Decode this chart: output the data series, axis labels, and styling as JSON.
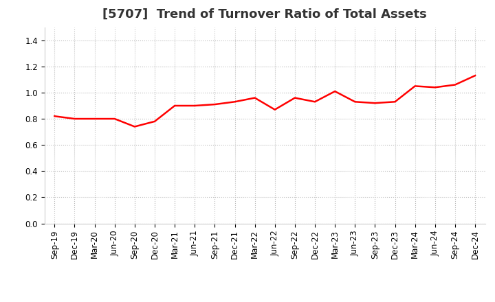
{
  "title": "[5707]  Trend of Turnover Ratio of Total Assets",
  "x_labels": [
    "Sep-19",
    "Dec-19",
    "Mar-20",
    "Jun-20",
    "Sep-20",
    "Dec-20",
    "Mar-21",
    "Jun-21",
    "Sep-21",
    "Dec-21",
    "Mar-22",
    "Jun-22",
    "Sep-22",
    "Dec-22",
    "Mar-23",
    "Jun-23",
    "Sep-23",
    "Dec-23",
    "Mar-24",
    "Jun-24",
    "Sep-24",
    "Dec-24"
  ],
  "y_values": [
    0.82,
    0.8,
    0.8,
    0.8,
    0.74,
    0.78,
    0.9,
    0.9,
    0.91,
    0.93,
    0.96,
    0.87,
    0.96,
    0.93,
    1.01,
    0.93,
    0.92,
    0.93,
    1.05,
    1.04,
    1.06,
    1.13
  ],
  "line_color": "#FF0000",
  "line_width": 1.8,
  "ylim": [
    0.0,
    1.5
  ],
  "yticks": [
    0.0,
    0.2,
    0.4,
    0.6,
    0.8,
    1.0,
    1.2,
    1.4
  ],
  "grid_color": "#bbbbbb",
  "grid_style": "dotted",
  "bg_color": "#ffffff",
  "title_fontsize": 13,
  "tick_fontsize": 8.5,
  "title_color": "#333333"
}
